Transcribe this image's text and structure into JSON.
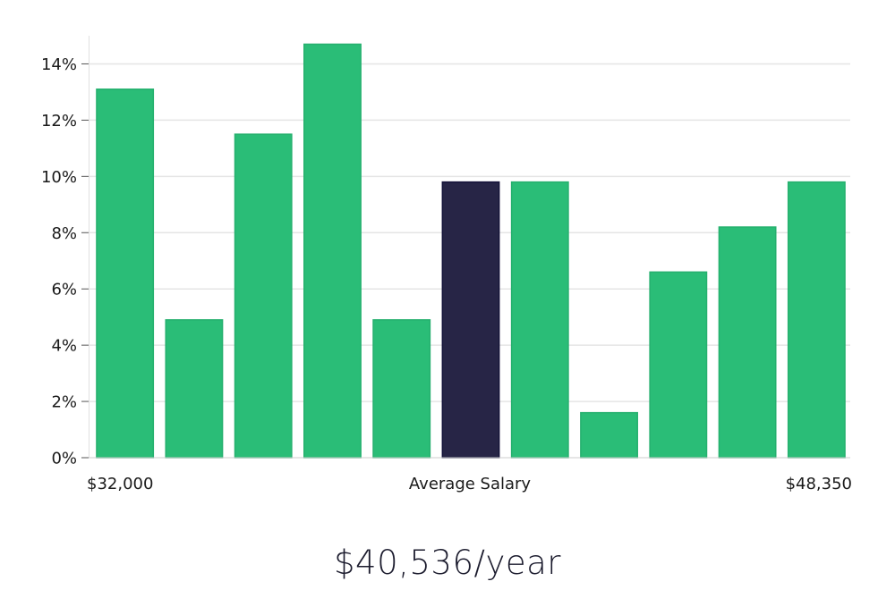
{
  "chart_data": {
    "type": "bar",
    "title": "",
    "xlabel": "Average Salary",
    "ylabel": "",
    "x_range_labels": {
      "min": "$32,000",
      "max": "$48,350"
    },
    "values": [
      13.1,
      4.9,
      11.5,
      14.7,
      4.9,
      9.8,
      9.8,
      1.6,
      6.6,
      8.2,
      9.8
    ],
    "highlight_index": 5,
    "ylim": [
      0,
      15
    ],
    "yticks": [
      0,
      2,
      4,
      6,
      8,
      10,
      12,
      14
    ],
    "ytick_suffix": "%",
    "grid": true,
    "colors": {
      "bar": "#2abd77",
      "highlight": "#272546",
      "highlight_edge": "#15133a",
      "grid": "#e5e5e5"
    }
  },
  "summary": {
    "salary_text": "$40,536/year"
  }
}
